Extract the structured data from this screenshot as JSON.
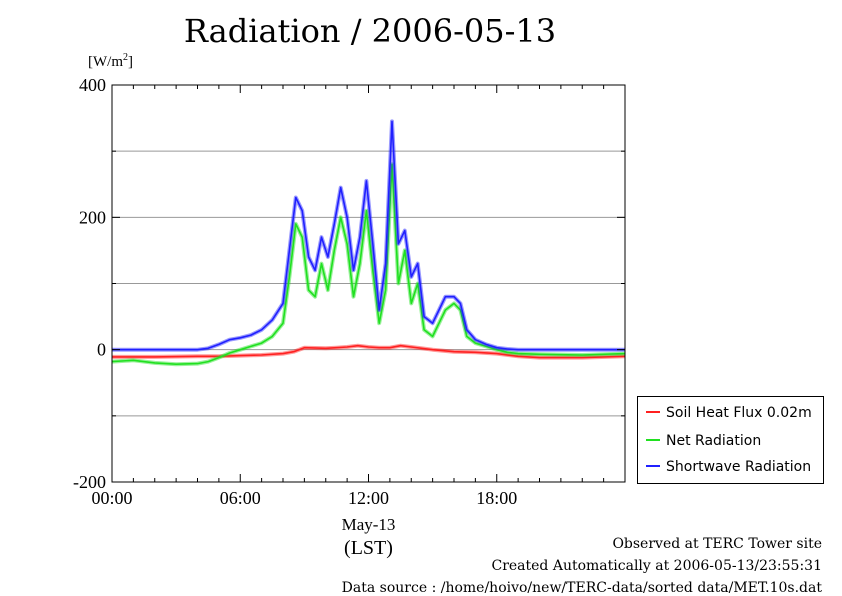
{
  "title": "Radiation / 2006-05-13",
  "unit_label": {
    "base": "[W/m",
    "sup": "2",
    "end": "]"
  },
  "footer": {
    "line1": "Observed at TERC Tower site",
    "line2": "Created Automatically at 2006-05-13/23:55:31",
    "line3": "Data source : /home/hoivo/new/TERC-data/sorted  data/MET.10s.dat"
  },
  "chart_data": {
    "type": "line",
    "title": "Radiation / 2006-05-13",
    "ylabel": "[W/m2]",
    "xlabel": "May-13 (LST)",
    "xlim": [
      0,
      24
    ],
    "ylim": [
      -200,
      400
    ],
    "x_ticks": [
      0,
      6,
      12,
      18
    ],
    "x_tick_labels": [
      "00:00",
      "06:00",
      "12:00",
      "18:00"
    ],
    "y_ticks": [
      -200,
      0,
      200,
      400
    ],
    "y_tick_labels": [
      "-200",
      "0",
      "200",
      "400"
    ],
    "x_sublabels": [
      "May-13",
      "(LST)"
    ],
    "grid": "horizontal",
    "legend_position": "bottom-right-outside",
    "series": [
      {
        "name": "Soil Heat Flux 0.02m",
        "color": "#ff2020",
        "x": [
          0,
          2,
          4,
          5,
          6,
          7,
          8,
          8.5,
          9,
          10,
          10.5,
          11,
          11.5,
          12,
          12.5,
          13,
          13.5,
          14,
          15,
          16,
          17,
          18,
          19,
          20,
          22,
          24
        ],
        "values": [
          -11,
          -11,
          -10,
          -10,
          -9,
          -8,
          -6,
          -3,
          3,
          2,
          3,
          4,
          6,
          4,
          3,
          3,
          6,
          4,
          0,
          -3,
          -4,
          -6,
          -10,
          -12,
          -12,
          -10
        ]
      },
      {
        "name": "Net Radiation",
        "color": "#20e020",
        "x": [
          0,
          1,
          2,
          3,
          4,
          4.5,
          5,
          5.5,
          6,
          6.5,
          7,
          7.5,
          8,
          8.3,
          8.6,
          8.9,
          9.2,
          9.5,
          9.8,
          10.1,
          10.4,
          10.7,
          11,
          11.3,
          11.6,
          11.9,
          12.2,
          12.5,
          12.8,
          13.1,
          13.4,
          13.7,
          14,
          14.3,
          14.6,
          15,
          15.3,
          15.6,
          16,
          16.3,
          16.6,
          17,
          17.5,
          18,
          18.5,
          19,
          20,
          22,
          24
        ],
        "values": [
          -18,
          -16,
          -20,
          -22,
          -21,
          -18,
          -12,
          -5,
          0,
          5,
          10,
          20,
          40,
          110,
          190,
          170,
          90,
          80,
          130,
          90,
          150,
          200,
          160,
          80,
          130,
          210,
          120,
          40,
          90,
          280,
          100,
          150,
          70,
          100,
          30,
          20,
          40,
          60,
          70,
          60,
          20,
          10,
          5,
          0,
          -4,
          -6,
          -7,
          -8,
          -6
        ]
      },
      {
        "name": "Shortwave Radiation",
        "color": "#2020ff",
        "x": [
          0,
          1,
          2,
          3,
          4,
          4.5,
          5,
          5.5,
          6,
          6.5,
          7,
          7.5,
          8,
          8.3,
          8.6,
          8.9,
          9.2,
          9.5,
          9.8,
          10.1,
          10.4,
          10.7,
          11,
          11.3,
          11.6,
          11.9,
          12.2,
          12.5,
          12.8,
          13.1,
          13.4,
          13.7,
          14,
          14.3,
          14.6,
          15,
          15.3,
          15.6,
          16,
          16.3,
          16.6,
          17,
          17.5,
          18,
          18.5,
          19,
          20,
          22,
          24
        ],
        "values": [
          0,
          0,
          0,
          0,
          0,
          2,
          8,
          15,
          18,
          22,
          30,
          45,
          70,
          150,
          230,
          210,
          140,
          120,
          170,
          140,
          190,
          245,
          200,
          120,
          170,
          255,
          160,
          60,
          130,
          345,
          160,
          180,
          110,
          130,
          50,
          40,
          60,
          80,
          80,
          70,
          30,
          15,
          8,
          3,
          1,
          0,
          0,
          0,
          0
        ]
      }
    ]
  }
}
